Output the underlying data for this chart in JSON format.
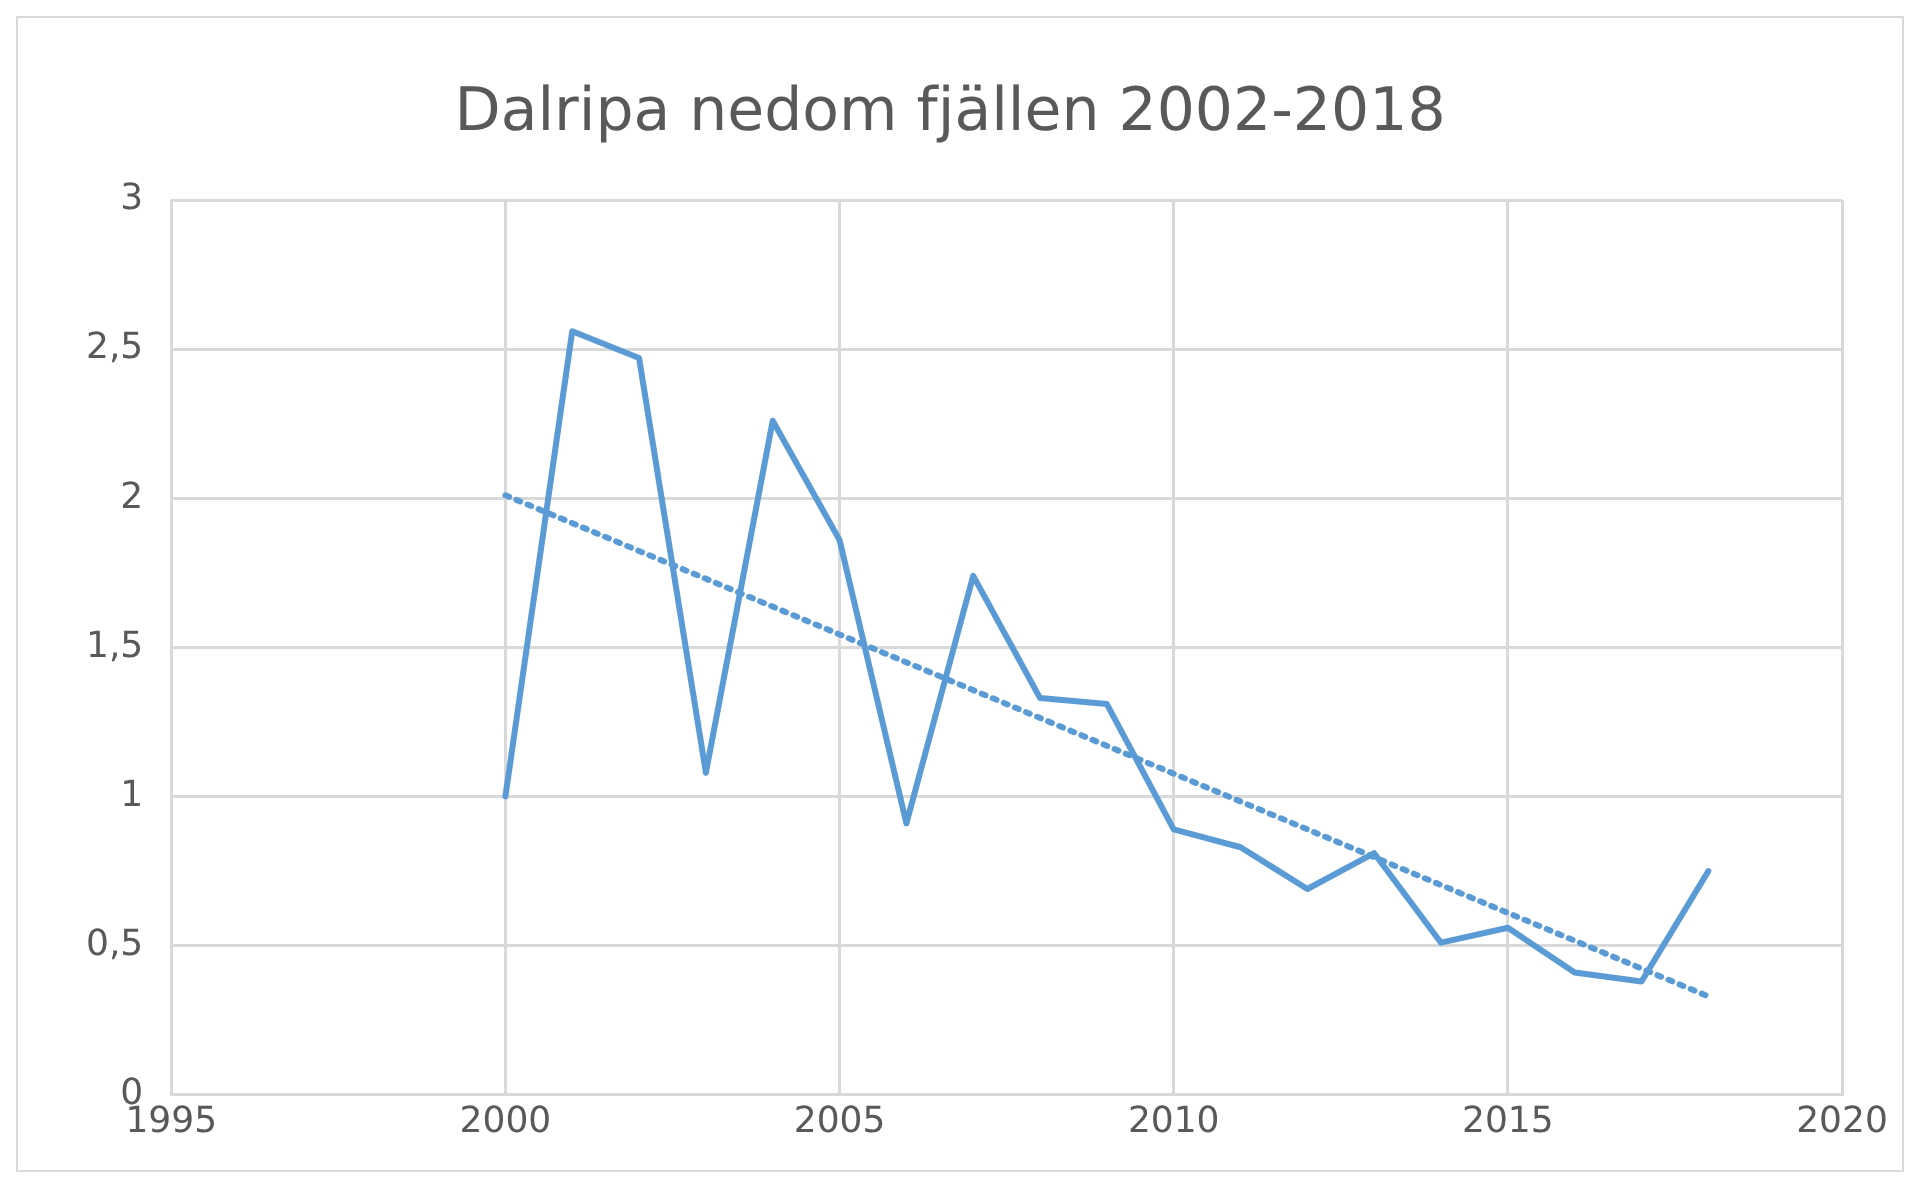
{
  "chart_data": {
    "type": "line",
    "title": "Dalripa nedom fjällen 2002-2018",
    "x": [
      2000,
      2001,
      2002,
      2003,
      2004,
      2005,
      2006,
      2007,
      2008,
      2009,
      2010,
      2011,
      2012,
      2013,
      2014,
      2015,
      2016,
      2017,
      2018
    ],
    "series": [
      {
        "color": "#5b9bd5",
        "values": [
          1.0,
          2.56,
          2.47,
          1.08,
          2.26,
          1.86,
          0.91,
          1.74,
          1.33,
          1.31,
          0.89,
          0.83,
          0.69,
          0.81,
          0.51,
          0.56,
          0.41,
          0.38,
          0.75
        ]
      },
      {
        "type": "line",
        "color": "#5b9bd5",
        "line_style": "dotted",
        "x": [
          2000,
          2018
        ],
        "values": [
          2.01,
          0.33
        ]
      }
    ],
    "xlim": [
      1995,
      2020
    ],
    "xticks": [
      1995,
      2000,
      2005,
      2010,
      2015,
      2020
    ],
    "ylim": [
      0,
      3
    ],
    "yticks": [
      0,
      {
        "value": 0.5,
        "label": "0,5"
      },
      1,
      {
        "value": 1.5,
        "label": "1,5"
      },
      2,
      {
        "value": 2.5,
        "label": "2,5"
      },
      3
    ],
    "grid": true,
    "legend": false,
    "marker": "none",
    "line_style": "solid"
  }
}
